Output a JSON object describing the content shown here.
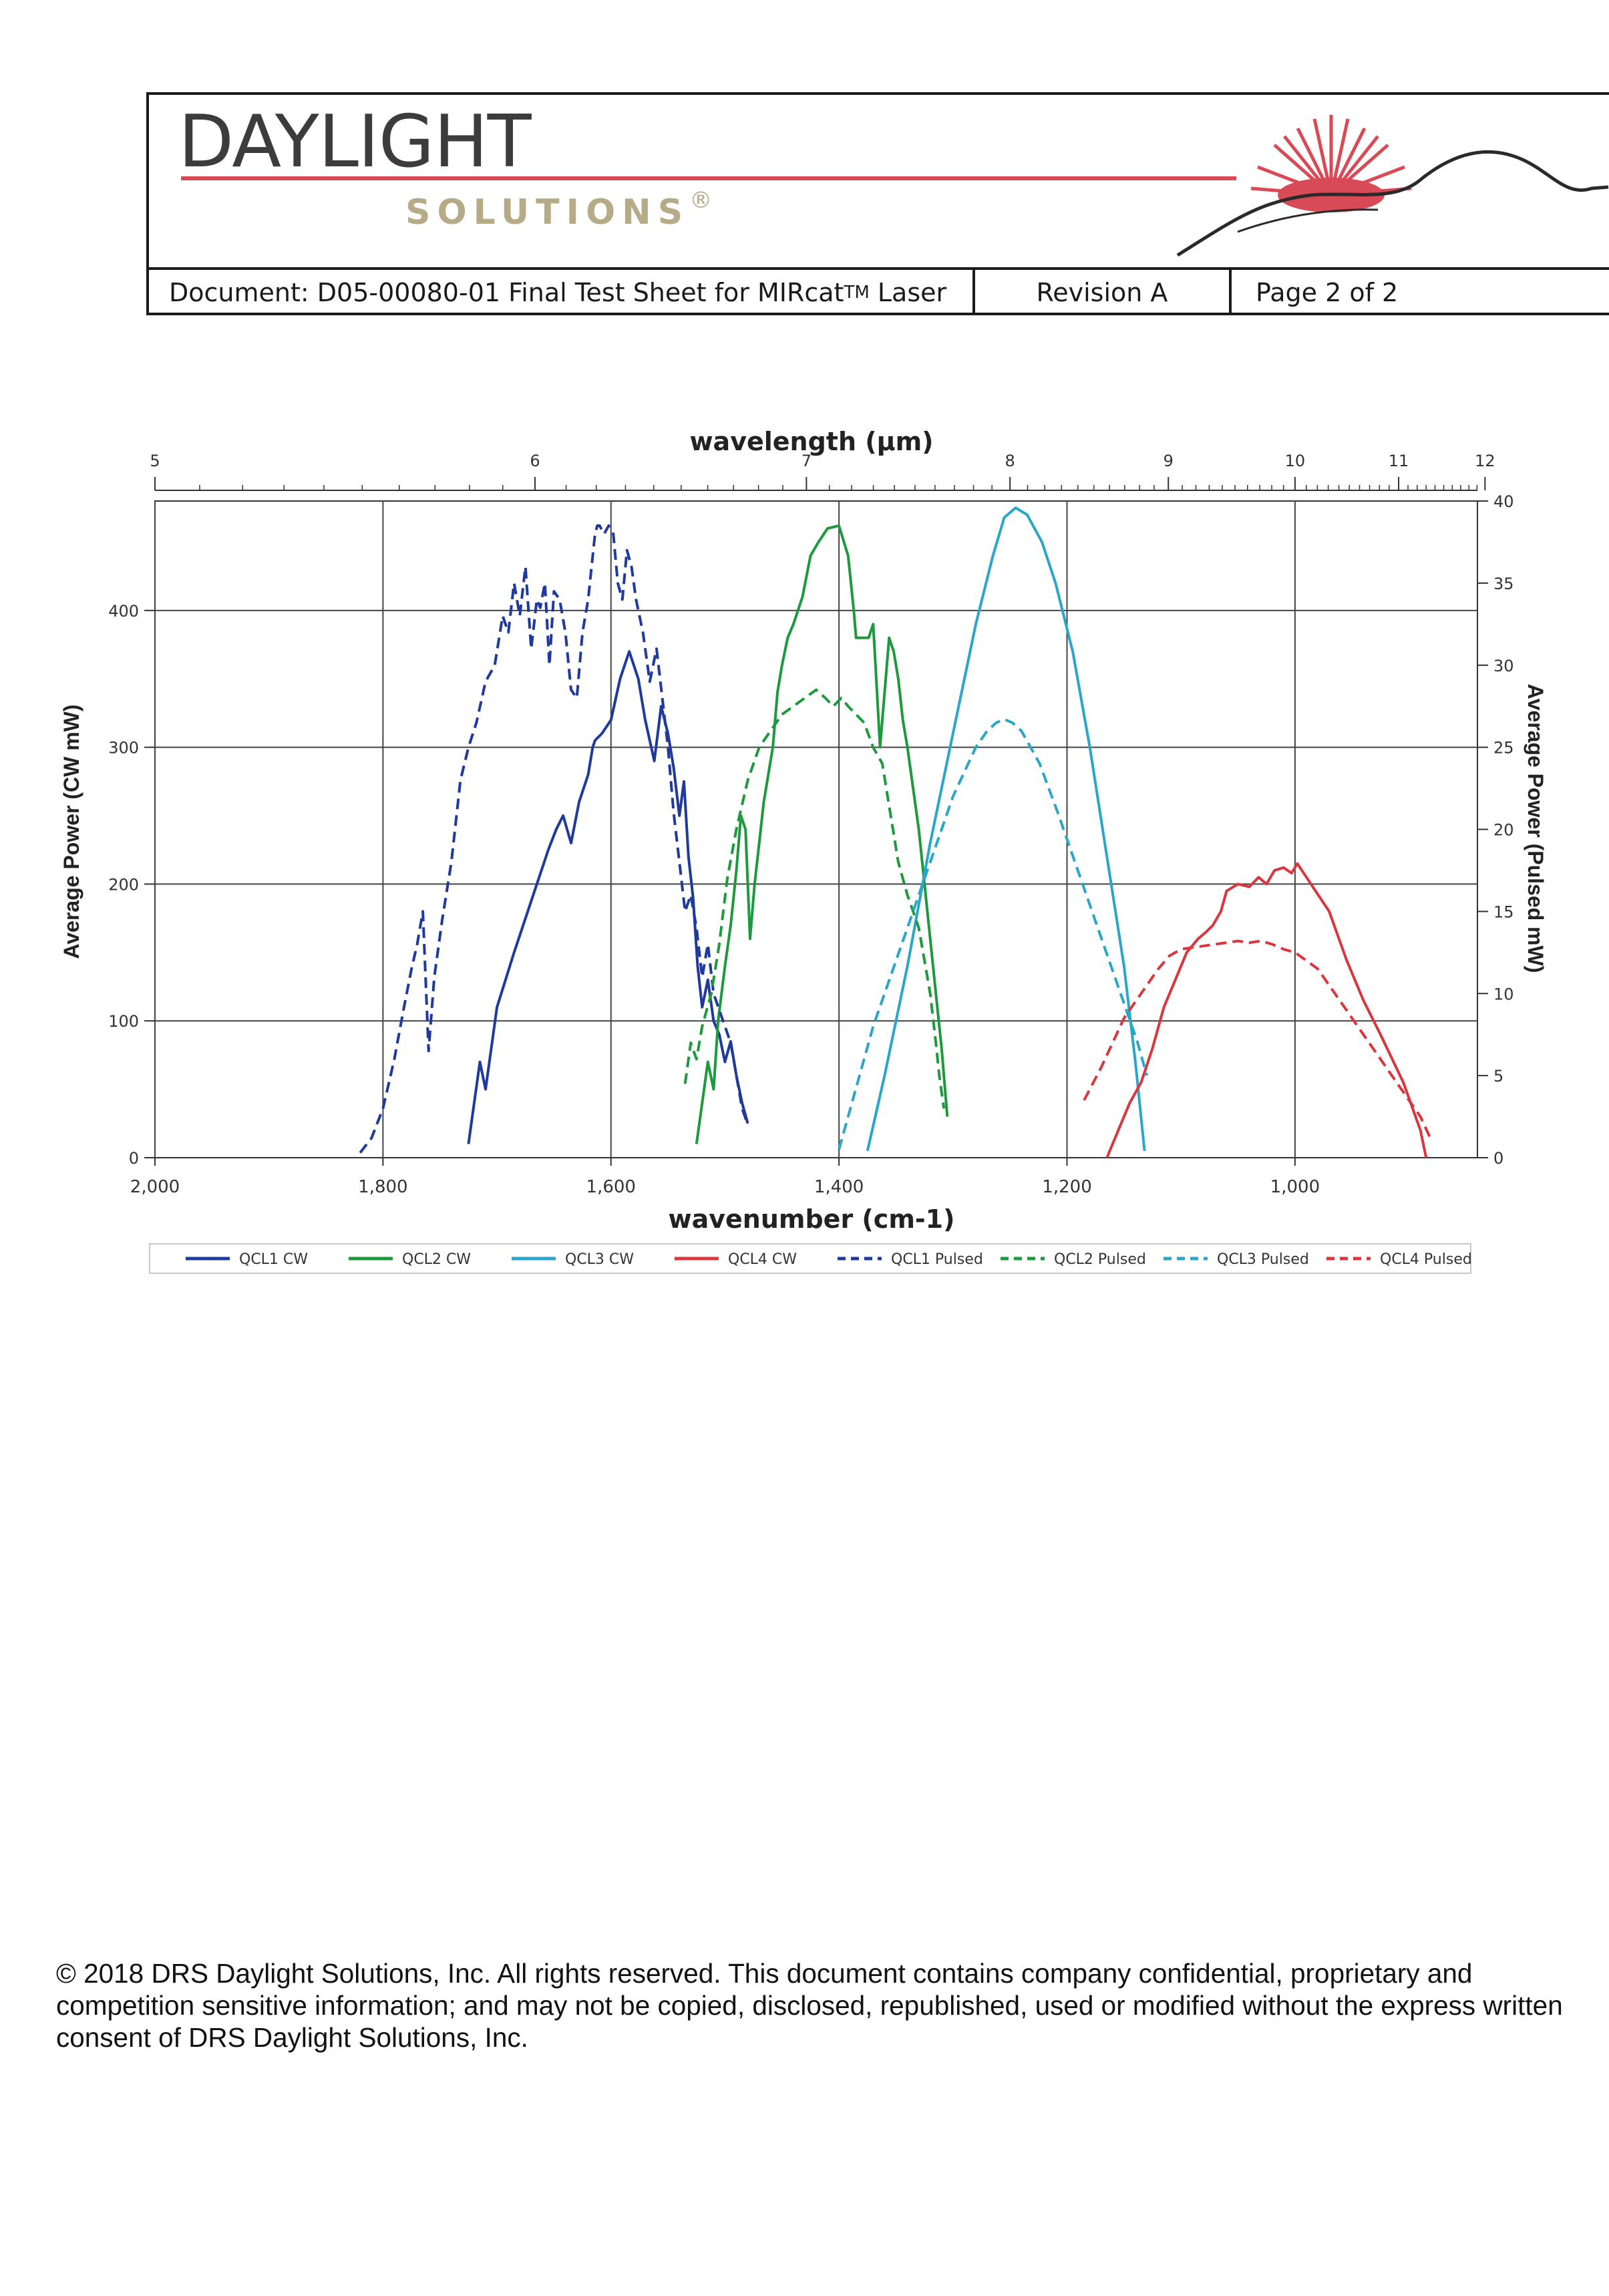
{
  "header": {
    "company_name": "DAYLIGHT",
    "company_sub": "SOLUTIONS",
    "registered": "®",
    "doc_label": "Document:",
    "doc_title_pre": "D05-00080-01 Final Test Sheet for MIRcat",
    "doc_title_tm": "TM",
    "doc_title_post": "Laser",
    "revision": "Revision A",
    "page": "Page 2 of 2"
  },
  "colors": {
    "brand_red": "#d94a57",
    "brand_gold": "#b5ab86",
    "qcl1": "#1f3a9c",
    "qcl2": "#1e9a3e",
    "qcl3": "#2aa6c8",
    "qcl4": "#d9363e"
  },
  "chart_data": {
    "type": "line",
    "title": "",
    "top_axis_label": "wavelength (µm)",
    "top_ticks": [
      "5",
      "6",
      "7",
      "8",
      "9",
      "10",
      "11",
      "12"
    ],
    "xlabel": "wavenumber (cm-1)",
    "xlim": [
      2000,
      840
    ],
    "x_ticks": [
      "2,000",
      "1,800",
      "1,600",
      "1,400",
      "1,200",
      "1,000"
    ],
    "ylabel": "Average Power (CW mW)",
    "ylim": [
      0,
      480
    ],
    "y_ticks": [
      "0",
      "100",
      "200",
      "300",
      "400"
    ],
    "y2label": "Average Power (Pulsed mW)",
    "y2lim": [
      0,
      40
    ],
    "y2_ticks": [
      "0",
      "5",
      "10",
      "15",
      "20",
      "25",
      "30",
      "35",
      "40"
    ],
    "grid": true,
    "legend": "bottom",
    "series": [
      {
        "name": "QCL1 CW",
        "axis": "left",
        "style": "solid",
        "color": "#1f3a9c",
        "x": [
          1725,
          1715,
          1710,
          1700,
          1685,
          1665,
          1655,
          1648,
          1642,
          1635,
          1628,
          1620,
          1618,
          1616,
          1614,
          1608,
          1600,
          1592,
          1588,
          1584,
          1580,
          1576,
          1570,
          1562,
          1556,
          1550,
          1545,
          1540,
          1536,
          1532,
          1528,
          1524,
          1520,
          1515,
          1510,
          1505,
          1500,
          1495,
          1490,
          1485,
          1480
        ],
        "y": [
          10,
          70,
          50,
          110,
          150,
          200,
          225,
          240,
          250,
          230,
          260,
          280,
          290,
          300,
          305,
          310,
          320,
          350,
          360,
          370,
          360,
          350,
          320,
          290,
          330,
          310,
          285,
          250,
          275,
          220,
          190,
          140,
          110,
          130,
          100,
          90,
          70,
          85,
          60,
          40,
          25
        ]
      },
      {
        "name": "QCL2 CW",
        "axis": "left",
        "style": "solid",
        "color": "#1e9a3e",
        "x": [
          1525,
          1520,
          1515,
          1510,
          1506,
          1500,
          1495,
          1490,
          1486,
          1482,
          1478,
          1474,
          1470,
          1466,
          1462,
          1458,
          1454,
          1450,
          1445,
          1440,
          1432,
          1425,
          1418,
          1410,
          1400,
          1392,
          1387,
          1385,
          1380,
          1374,
          1370,
          1368,
          1364,
          1360,
          1356,
          1352,
          1348,
          1344,
          1340,
          1335,
          1330,
          1325,
          1320,
          1315,
          1310,
          1305
        ],
        "y": [
          10,
          40,
          70,
          50,
          100,
          140,
          170,
          210,
          250,
          240,
          160,
          200,
          230,
          260,
          280,
          300,
          340,
          360,
          380,
          390,
          410,
          440,
          450,
          460,
          462,
          440,
          400,
          380,
          380,
          380,
          390,
          360,
          300,
          340,
          380,
          370,
          350,
          320,
          300,
          270,
          240,
          200,
          160,
          120,
          80,
          30
        ]
      },
      {
        "name": "QCL3 CW",
        "axis": "left",
        "style": "solid",
        "color": "#2aa6c8",
        "x": [
          1375,
          1360,
          1340,
          1320,
          1300,
          1280,
          1265,
          1255,
          1245,
          1235,
          1222,
          1210,
          1195,
          1180,
          1165,
          1150,
          1140,
          1132
        ],
        "y": [
          5,
          60,
          140,
          230,
          310,
          390,
          440,
          468,
          475,
          470,
          450,
          420,
          370,
          300,
          220,
          140,
          70,
          5
        ]
      },
      {
        "name": "QCL4 CW",
        "axis": "left",
        "style": "solid",
        "color": "#d9363e",
        "x": [
          1165,
          1155,
          1145,
          1135,
          1125,
          1115,
          1105,
          1095,
          1085,
          1078,
          1072,
          1065,
          1060,
          1050,
          1040,
          1032,
          1025,
          1018,
          1010,
          1003,
          998,
          990,
          982,
          970,
          955,
          940,
          925,
          905,
          890,
          885
        ],
        "y": [
          0,
          20,
          40,
          55,
          80,
          110,
          130,
          150,
          160,
          165,
          170,
          180,
          195,
          200,
          198,
          205,
          200,
          210,
          212,
          208,
          215,
          205,
          195,
          180,
          145,
          115,
          90,
          55,
          20,
          0
        ]
      },
      {
        "name": "QCL1 Pulsed",
        "axis": "right",
        "style": "dashed",
        "color": "#1f3a9c",
        "x": [
          1820,
          1810,
          1800,
          1790,
          1782,
          1775,
          1770,
          1765,
          1760,
          1755,
          1748,
          1740,
          1732,
          1725,
          1718,
          1710,
          1702,
          1695,
          1690,
          1685,
          1680,
          1675,
          1670,
          1665,
          1662,
          1658,
          1654,
          1650,
          1645,
          1640,
          1635,
          1630,
          1625,
          1620,
          1617,
          1614,
          1612,
          1610,
          1606,
          1602,
          1598,
          1594,
          1590,
          1586,
          1582,
          1578,
          1572,
          1566,
          1560,
          1555,
          1550,
          1545,
          1540,
          1535,
          1530,
          1525,
          1520,
          1515,
          1510,
          1505,
          1500,
          1495,
          1490,
          1485,
          1480
        ],
        "y": [
          0.3,
          1.2,
          3,
          6,
          9,
          11.5,
          13,
          15,
          6.5,
          11,
          14.5,
          18,
          23,
          25,
          26.5,
          29,
          30,
          33,
          32,
          35,
          33,
          36,
          31,
          34,
          33.5,
          35,
          30,
          34.5,
          34,
          32,
          28.5,
          28,
          32,
          34,
          36,
          38,
          38.5,
          38.5,
          38,
          38.5,
          38,
          35,
          34,
          37,
          36,
          34,
          32,
          29,
          31,
          28,
          25,
          21,
          18,
          15,
          16,
          14,
          11,
          13,
          10,
          9,
          8,
          7,
          5,
          3,
          2
        ]
      },
      {
        "name": "QCL2 Pulsed",
        "axis": "right",
        "style": "dashed",
        "color": "#1e9a3e",
        "x": [
          1535,
          1530,
          1525,
          1520,
          1512,
          1505,
          1498,
          1490,
          1480,
          1470,
          1460,
          1450,
          1440,
          1430,
          1420,
          1412,
          1405,
          1398,
          1392,
          1385,
          1378,
          1370,
          1362,
          1355,
          1348,
          1340,
          1335,
          1330,
          1325,
          1320,
          1315,
          1312,
          1308
        ],
        "y": [
          4.5,
          7,
          6,
          8,
          10,
          13,
          17,
          20,
          23,
          25,
          26,
          27,
          27.5,
          28,
          28.5,
          28,
          27.5,
          28,
          27.5,
          27,
          26.5,
          25,
          24,
          21,
          18,
          16,
          15,
          14,
          12,
          10,
          7,
          5,
          3
        ]
      },
      {
        "name": "QCL3 Pulsed",
        "axis": "right",
        "style": "dashed",
        "color": "#2aa6c8",
        "x": [
          1400,
          1390,
          1380,
          1370,
          1360,
          1350,
          1340,
          1330,
          1320,
          1310,
          1300,
          1290,
          1280,
          1270,
          1262,
          1255,
          1248,
          1240,
          1232,
          1224,
          1216,
          1208,
          1198,
          1188,
          1178,
          1168,
          1158,
          1148,
          1138,
          1130
        ],
        "y": [
          0.5,
          3,
          5.5,
          8,
          10,
          12,
          14,
          16,
          18,
          20,
          22,
          23.5,
          25,
          26,
          26.5,
          26.7,
          26.5,
          26,
          25,
          24,
          22.5,
          21,
          19,
          17,
          15,
          13,
          11,
          9,
          7,
          5
        ]
      },
      {
        "name": "QCL4 Pulsed",
        "axis": "right",
        "style": "dashed",
        "color": "#d9363e",
        "x": [
          1185,
          1170,
          1160,
          1150,
          1140,
          1130,
          1120,
          1110,
          1100,
          1090,
          1080,
          1070,
          1060,
          1050,
          1040,
          1030,
          1020,
          1010,
          1000,
          990,
          980,
          970,
          960,
          950,
          940,
          930,
          920,
          910,
          900,
          890,
          880
        ],
        "y": [
          3.5,
          5.5,
          7,
          8.5,
          9.5,
          10.5,
          11.5,
          12.3,
          12.7,
          12.8,
          12.9,
          13,
          13.1,
          13.2,
          13.1,
          13.2,
          13,
          12.7,
          12.5,
          12,
          11.5,
          10.5,
          9.5,
          8.5,
          7.5,
          6.5,
          5.5,
          4.5,
          3.5,
          2.5,
          1
        ]
      }
    ]
  },
  "footer": {
    "copyright": "© 2018 DRS Daylight Solutions, Inc. All rights reserved. This document contains company confidential, proprietary and competition sensitive information; and may not be copied, disclosed, republished, used or modified without the express written consent of DRS Daylight Solutions, Inc."
  }
}
